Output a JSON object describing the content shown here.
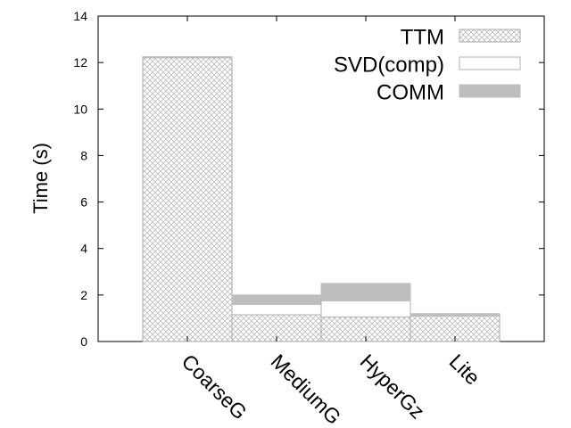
{
  "chart_data": {
    "type": "bar",
    "stacked": true,
    "title": "",
    "xlabel": "",
    "ylabel": "Time (s)",
    "ylim": [
      0,
      14
    ],
    "yticks": [
      0,
      2,
      4,
      6,
      8,
      10,
      12,
      14
    ],
    "categories": [
      "CoarseG",
      "MediumG",
      "HyperGz",
      "Lite"
    ],
    "series": [
      {
        "name": "TTM",
        "values": [
          12.2,
          1.15,
          1.05,
          1.1
        ],
        "fill": "crosshatch",
        "color": "#b4b4b4"
      },
      {
        "name": "SVD(comp)",
        "values": [
          0.0,
          0.45,
          0.7,
          0.0
        ],
        "fill": "solid",
        "color": "#ffffff"
      },
      {
        "name": "COMM",
        "values": [
          0.05,
          0.4,
          0.75,
          0.1
        ],
        "fill": "solid",
        "color": "#bebebe"
      }
    ],
    "legend_position": "top-right",
    "grid": false
  }
}
